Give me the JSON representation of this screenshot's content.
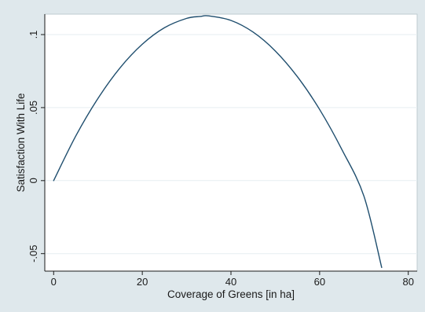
{
  "chart_data": {
    "type": "line",
    "title": "",
    "xlabel": "Coverage of Greens [in ha]",
    "ylabel": "Satisfaction With Life",
    "xlim": [
      -2,
      82
    ],
    "ylim": [
      -0.062,
      0.114
    ],
    "xticks": [
      0,
      20,
      40,
      60,
      80
    ],
    "xtick_labels": [
      "0",
      "20",
      "40",
      "60",
      "80"
    ],
    "yticks": [
      -0.05,
      0,
      0.05,
      0.1
    ],
    "ytick_labels": [
      "-.05",
      "0",
      ".05",
      ".1"
    ],
    "grid": true,
    "legend": "none",
    "colors": {
      "background": "#dfe8ec",
      "plot_background": "#ffffff",
      "line": "#1f4e6e",
      "grid": "#e6eef1"
    },
    "series": [
      {
        "x": [
          0,
          5,
          10,
          15,
          20,
          25,
          30,
          33,
          35,
          40,
          45,
          50,
          55,
          60,
          65,
          70,
          74
        ],
        "y": [
          0,
          0.0306,
          0.0563,
          0.0773,
          0.0934,
          0.1047,
          0.1111,
          0.1124,
          0.1128,
          0.1097,
          0.1017,
          0.0888,
          0.0711,
          0.0487,
          0.0214,
          -0.0107,
          -0.0595
        ]
      }
    ]
  }
}
